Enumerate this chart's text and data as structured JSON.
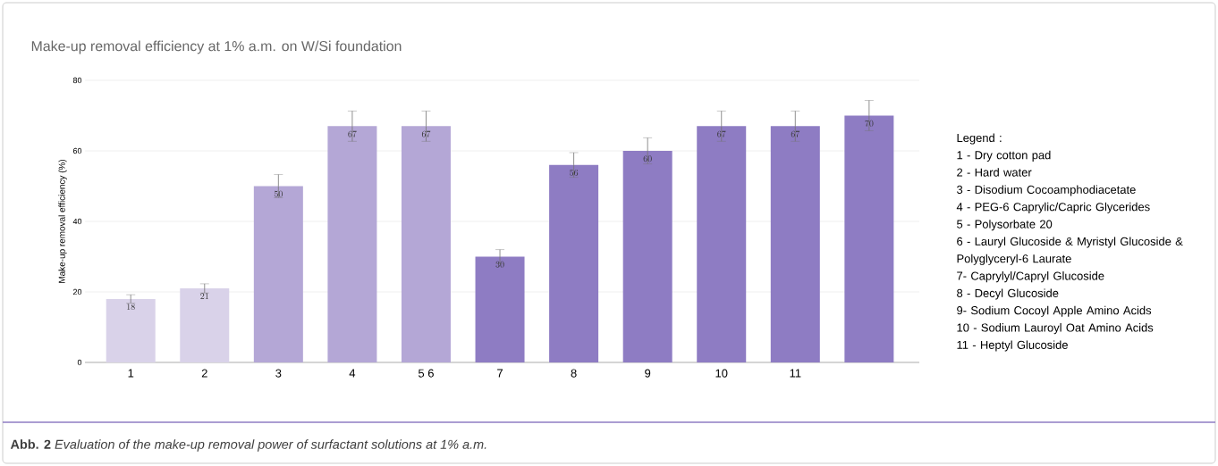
{
  "chart_data": {
    "type": "bar",
    "title": "Make-up removal efficiency at 1% a.m. on W/Si foundation",
    "ylabel": "Make-up removal efficiency (%)",
    "categories": [
      "1",
      "2",
      "3",
      "4",
      "5 6",
      "7",
      "8",
      "9",
      "10",
      "11",
      null
    ],
    "values": [
      18,
      21,
      50,
      67,
      67,
      30,
      56,
      60,
      67,
      67,
      70
    ],
    "errors": [
      1.2,
      1.3,
      3.3,
      4.3,
      4.3,
      2,
      3.5,
      3.7,
      4.3,
      4.3,
      4.3
    ],
    "colors": [
      "#d9d2e9",
      "#d9d2e9",
      "#b4a7d6",
      "#b4a7d6",
      "#b4a7d6",
      "#8e7cc3",
      "#8e7cc3",
      "#8e7cc3",
      "#8e7cc3",
      "#8e7cc3",
      "#8e7cc3"
    ],
    "ylim": [
      0,
      80
    ],
    "yticks": [
      0,
      20,
      40,
      60,
      80
    ],
    "grid": "y",
    "data_labels": true,
    "annotations": [
      "Legend :",
      "1 - Dry cotton pad",
      "2 - Hard water",
      "3 - Disodium Cocoamphodiacetate",
      "4 - PEG-6 Caprylic/Capric Glycerides",
      "5 - Polysorbate 20",
      "6 - Lauryl Glucoside & Myristyl Glucoside  & Polyglyceryl-6 Laurate",
      "7- Caprylyl/Capryl Glucoside",
      "8 - Decyl Glucoside",
      "9- Sodium Cocoyl Apple Amino Acids",
      "10 - Sodium Lauroyl Oat Amino Acids",
      "11 - Heptyl Glucoside",
      "**Abb. 2** *Evaluation of the make-up removal power of surfactant solutions at 1% a.m.*"
    ]
  }
}
